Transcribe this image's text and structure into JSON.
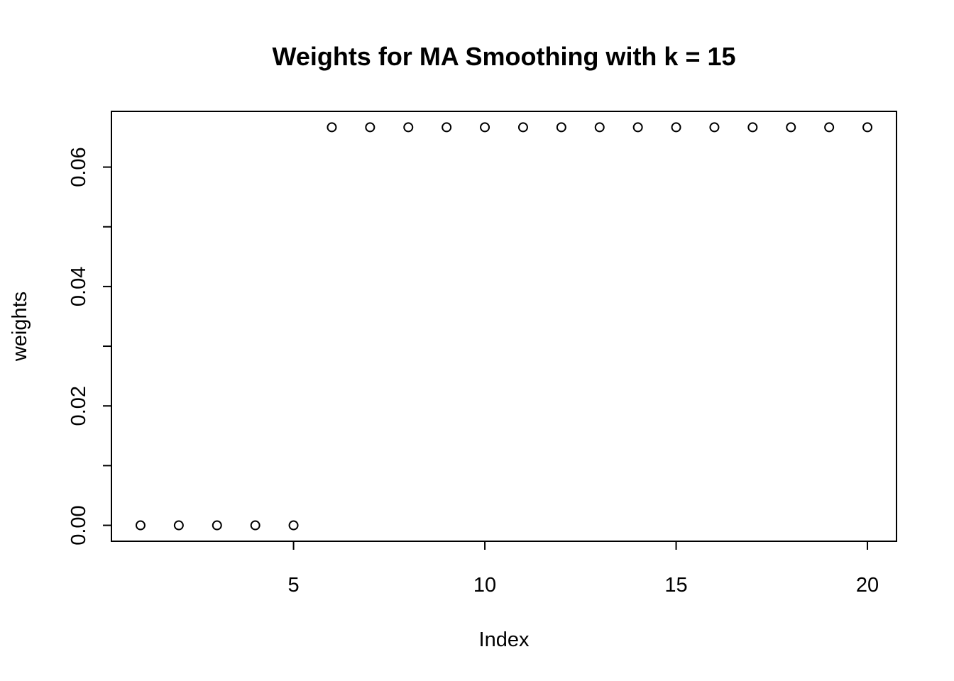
{
  "chart_data": {
    "type": "scatter",
    "title": "Weights for MA Smoothing with k = 15",
    "xlabel": "Index",
    "ylabel": "weights",
    "x": [
      1,
      2,
      3,
      4,
      5,
      6,
      7,
      8,
      9,
      10,
      11,
      12,
      13,
      14,
      15,
      16,
      17,
      18,
      19,
      20
    ],
    "y": [
      0,
      0,
      0,
      0,
      0,
      0.06667,
      0.06667,
      0.06667,
      0.06667,
      0.06667,
      0.06667,
      0.06667,
      0.06667,
      0.06667,
      0.06667,
      0.06667,
      0.06667,
      0.06667,
      0.06667,
      0.06667
    ],
    "xlim": [
      0.24,
      20.76
    ],
    "ylim": [
      -0.002667,
      0.069333
    ],
    "x_ticks": [
      5,
      10,
      15,
      20
    ],
    "x_tick_labels": [
      "5",
      "10",
      "15",
      "20"
    ],
    "y_ticks": [
      0,
      0.01,
      0.02,
      0.03,
      0.04,
      0.05,
      0.06
    ],
    "y_tick_labels": [
      "0.00",
      "",
      "0.02",
      "",
      "0.04",
      "",
      "0.06"
    ],
    "marker": "open-circle",
    "grid": false,
    "legend": "none",
    "colors": {
      "point": "#000000",
      "background": "#ffffff"
    }
  }
}
